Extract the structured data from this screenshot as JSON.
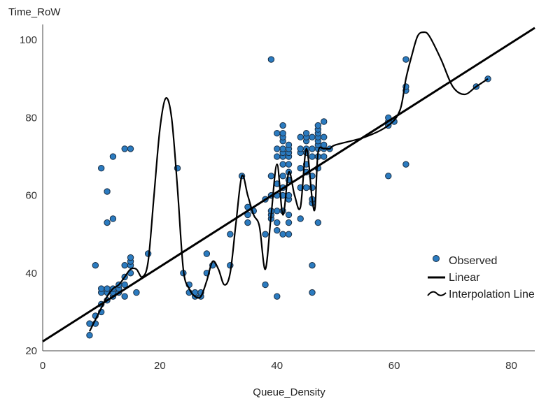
{
  "chart_data": {
    "type": "scatter",
    "title": "",
    "xlabel": "Queue_Density",
    "ylabel": "Time_RoW",
    "xlim": [
      0,
      84
    ],
    "ylim": [
      20,
      104
    ],
    "x_ticks": [
      0,
      20,
      40,
      60,
      80
    ],
    "y_ticks": [
      20,
      40,
      60,
      80,
      100
    ],
    "grid": false,
    "legend_position": "right",
    "colors": {
      "observed_fill": "#2b7bc0",
      "observed_stroke": "#1a2f45",
      "line": "#000000"
    },
    "series": [
      {
        "name": "Observed",
        "kind": "points",
        "points": [
          [
            8,
            24
          ],
          [
            8,
            27
          ],
          [
            9,
            27
          ],
          [
            9,
            29
          ],
          [
            9,
            42
          ],
          [
            10,
            30
          ],
          [
            10,
            32
          ],
          [
            10,
            35
          ],
          [
            10,
            36
          ],
          [
            10,
            67
          ],
          [
            11,
            33
          ],
          [
            11,
            35
          ],
          [
            11,
            36
          ],
          [
            11,
            53
          ],
          [
            11,
            61
          ],
          [
            12,
            34
          ],
          [
            12,
            35
          ],
          [
            12,
            36
          ],
          [
            12,
            54
          ],
          [
            12,
            70
          ],
          [
            13,
            35
          ],
          [
            13,
            36
          ],
          [
            13,
            37
          ],
          [
            14,
            34
          ],
          [
            14,
            37
          ],
          [
            14,
            39
          ],
          [
            14,
            42
          ],
          [
            14,
            72
          ],
          [
            15,
            40
          ],
          [
            15,
            42
          ],
          [
            15,
            43
          ],
          [
            15,
            44
          ],
          [
            15,
            72
          ],
          [
            16,
            35
          ],
          [
            18,
            45
          ],
          [
            23,
            67
          ],
          [
            24,
            40
          ],
          [
            25,
            35
          ],
          [
            25,
            37
          ],
          [
            26,
            34
          ],
          [
            26,
            35
          ],
          [
            27,
            34
          ],
          [
            27,
            35
          ],
          [
            28,
            40
          ],
          [
            28,
            45
          ],
          [
            29,
            42
          ],
          [
            32,
            42
          ],
          [
            32,
            50
          ],
          [
            34,
            65
          ],
          [
            35,
            53
          ],
          [
            35,
            55
          ],
          [
            35,
            57
          ],
          [
            36,
            56
          ],
          [
            38,
            37
          ],
          [
            38,
            50
          ],
          [
            38,
            59
          ],
          [
            39,
            95
          ],
          [
            39,
            54
          ],
          [
            39,
            55
          ],
          [
            39,
            56
          ],
          [
            39,
            60
          ],
          [
            39,
            65
          ],
          [
            40,
            34
          ],
          [
            40,
            51
          ],
          [
            40,
            53
          ],
          [
            40,
            56
          ],
          [
            40,
            60
          ],
          [
            40,
            63
          ],
          [
            40,
            70
          ],
          [
            40,
            72
          ],
          [
            40,
            76
          ],
          [
            41,
            50
          ],
          [
            41,
            56
          ],
          [
            41,
            60
          ],
          [
            41,
            62
          ],
          [
            41,
            65
          ],
          [
            41,
            68
          ],
          [
            41,
            70
          ],
          [
            41,
            71
          ],
          [
            41,
            72
          ],
          [
            41,
            74
          ],
          [
            41,
            75
          ],
          [
            41,
            76
          ],
          [
            41,
            78
          ],
          [
            42,
            50
          ],
          [
            42,
            53
          ],
          [
            42,
            55
          ],
          [
            42,
            59
          ],
          [
            42,
            60
          ],
          [
            42,
            64
          ],
          [
            42,
            66
          ],
          [
            42,
            68
          ],
          [
            42,
            70
          ],
          [
            42,
            71
          ],
          [
            42,
            72
          ],
          [
            42,
            73
          ],
          [
            44,
            54
          ],
          [
            44,
            62
          ],
          [
            44,
            67
          ],
          [
            44,
            71
          ],
          [
            44,
            72
          ],
          [
            44,
            75
          ],
          [
            45,
            62
          ],
          [
            45,
            66
          ],
          [
            45,
            68
          ],
          [
            45,
            71
          ],
          [
            45,
            72
          ],
          [
            45,
            74
          ],
          [
            45,
            75
          ],
          [
            45,
            76
          ],
          [
            46,
            35
          ],
          [
            46,
            42
          ],
          [
            46,
            58
          ],
          [
            46,
            59
          ],
          [
            46,
            62
          ],
          [
            46,
            65
          ],
          [
            46,
            70
          ],
          [
            46,
            72
          ],
          [
            46,
            75
          ],
          [
            47,
            53
          ],
          [
            47,
            67
          ],
          [
            47,
            70
          ],
          [
            47,
            72
          ],
          [
            47,
            73
          ],
          [
            47,
            74
          ],
          [
            47,
            75
          ],
          [
            47,
            76
          ],
          [
            47,
            77
          ],
          [
            47,
            78
          ],
          [
            48,
            70
          ],
          [
            48,
            72
          ],
          [
            48,
            73
          ],
          [
            48,
            75
          ],
          [
            48,
            79
          ],
          [
            49,
            72
          ],
          [
            59,
            65
          ],
          [
            59,
            78
          ],
          [
            59,
            79
          ],
          [
            59,
            80
          ],
          [
            60,
            79
          ],
          [
            62,
            68
          ],
          [
            62,
            87
          ],
          [
            62,
            88
          ],
          [
            62,
            95
          ],
          [
            74,
            88
          ],
          [
            76,
            90
          ]
        ]
      },
      {
        "name": "Linear",
        "kind": "line",
        "intercept": 22.4,
        "slope": 0.961,
        "x_range": [
          0,
          84
        ]
      },
      {
        "name": "Interpolation Line",
        "kind": "curve",
        "points": [
          [
            8,
            25
          ],
          [
            9,
            28
          ],
          [
            10,
            31
          ],
          [
            11,
            34
          ],
          [
            12,
            36
          ],
          [
            13,
            37
          ],
          [
            14,
            39
          ],
          [
            15,
            41
          ],
          [
            16,
            41
          ],
          [
            17,
            39
          ],
          [
            18,
            43
          ],
          [
            19,
            60
          ],
          [
            20,
            77
          ],
          [
            21,
            85
          ],
          [
            22,
            80
          ],
          [
            23,
            62
          ],
          [
            24,
            41
          ],
          [
            25,
            36
          ],
          [
            26,
            34
          ],
          [
            27,
            34
          ],
          [
            28,
            38
          ],
          [
            29,
            43
          ],
          [
            30,
            41
          ],
          [
            31,
            37
          ],
          [
            32,
            40
          ],
          [
            33,
            53
          ],
          [
            34,
            65
          ],
          [
            35,
            60
          ],
          [
            36,
            55
          ],
          [
            37,
            52
          ],
          [
            38,
            41
          ],
          [
            39,
            55
          ],
          [
            40,
            68
          ],
          [
            41,
            55
          ],
          [
            42,
            66
          ],
          [
            43,
            60
          ],
          [
            44,
            57
          ],
          [
            45,
            72
          ],
          [
            46,
            59
          ],
          [
            46.5,
            57
          ],
          [
            47,
            71
          ],
          [
            48,
            72
          ],
          [
            49,
            72
          ],
          [
            50,
            73
          ],
          [
            55,
            75
          ],
          [
            59,
            78
          ],
          [
            61,
            82
          ],
          [
            62,
            90
          ],
          [
            63,
            96
          ],
          [
            64,
            101
          ],
          [
            65,
            102
          ],
          [
            66,
            101
          ],
          [
            68,
            95
          ],
          [
            70,
            88
          ],
          [
            72,
            86
          ],
          [
            74,
            88
          ],
          [
            76,
            90
          ]
        ]
      }
    ]
  }
}
